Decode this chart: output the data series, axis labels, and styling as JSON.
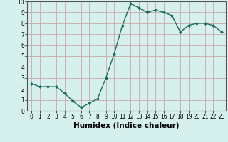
{
  "x": [
    0,
    1,
    2,
    3,
    4,
    5,
    6,
    7,
    8,
    9,
    10,
    11,
    12,
    13,
    14,
    15,
    16,
    17,
    18,
    19,
    20,
    21,
    22,
    23
  ],
  "y": [
    2.5,
    2.2,
    2.2,
    2.2,
    1.6,
    0.9,
    0.3,
    0.7,
    1.1,
    3.0,
    5.2,
    7.8,
    9.8,
    9.4,
    9.0,
    9.2,
    9.0,
    8.7,
    7.2,
    7.8,
    8.0,
    8.0,
    7.8,
    7.2
  ],
  "line_color": "#1a6b5a",
  "marker": "D",
  "marker_size": 2.0,
  "xlabel": "Humidex (Indice chaleur)",
  "xlim": [
    -0.5,
    23.5
  ],
  "ylim": [
    0,
    10
  ],
  "xticks": [
    0,
    1,
    2,
    3,
    4,
    5,
    6,
    7,
    8,
    9,
    10,
    11,
    12,
    13,
    14,
    15,
    16,
    17,
    18,
    19,
    20,
    21,
    22,
    23
  ],
  "yticks": [
    0,
    1,
    2,
    3,
    4,
    5,
    6,
    7,
    8,
    9,
    10
  ],
  "bg_color": "#d6f0ee",
  "plot_bg": "#d6f0ee",
  "grid_color": "#c9a8a8",
  "line_width": 1.0,
  "tick_fontsize": 5.5,
  "xlabel_fontsize": 7.5
}
